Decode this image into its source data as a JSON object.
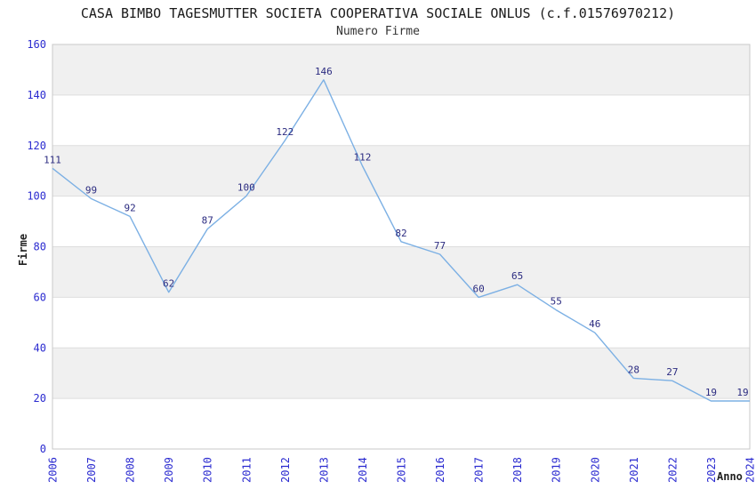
{
  "chart_data": {
    "type": "line",
    "title": "CASA BIMBO TAGESMUTTER SOCIETA COOPERATIVA SOCIALE ONLUS (c.f.01576970212)",
    "subtitle": "Numero Firme",
    "xlabel": "Anno",
    "ylabel": "Firme",
    "categories": [
      "2006",
      "2007",
      "2008",
      "2009",
      "2010",
      "2011",
      "2012",
      "2013",
      "2014",
      "2015",
      "2016",
      "2017",
      "2018",
      "2019",
      "2020",
      "2021",
      "2022",
      "2023",
      "2024"
    ],
    "values": [
      111,
      99,
      92,
      62,
      87,
      100,
      122,
      146,
      112,
      82,
      77,
      60,
      65,
      55,
      46,
      28,
      27,
      19,
      19
    ],
    "ylim": [
      0,
      160
    ],
    "ytick_step": 20,
    "yticks": [
      0,
      20,
      40,
      60,
      80,
      100,
      120,
      140,
      160
    ],
    "grid": true,
    "legend_visible": false,
    "colors": {
      "line": "#7cb0e4",
      "axis_tick_text": "#2b2bd0",
      "value_label_text": "#2b2b80",
      "band_gray": "#f0f0f0",
      "band_white": "#ffffff",
      "gridline": "#dedede",
      "plot_border": "#c9c9c9",
      "title_text": "#1a1a1a",
      "subtitle_text": "#333333",
      "axis_title_text": "#222222"
    }
  }
}
